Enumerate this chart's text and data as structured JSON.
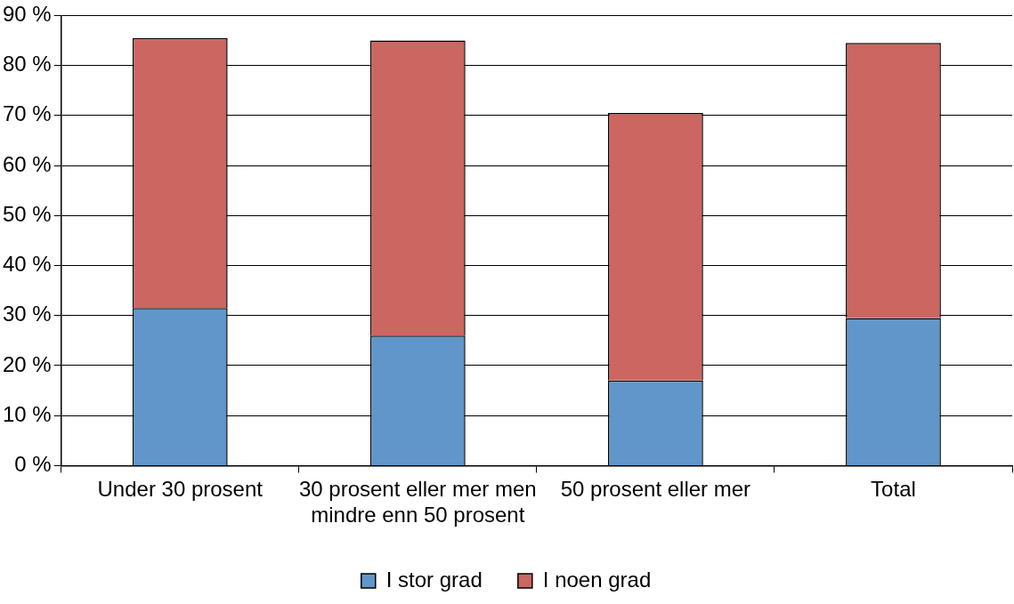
{
  "chart_data": {
    "type": "bar",
    "stacked": true,
    "categories": [
      "Under 30 prosent",
      "30 prosent eller mer men mindre enn 50 prosent",
      "50 prosent eller mer",
      "Total"
    ],
    "series": [
      {
        "name": "I stor grad",
        "color": "#6096c9",
        "values": [
          31.5,
          26,
          17,
          29.5
        ]
      },
      {
        "name": "I noen grad",
        "color": "#cc6660",
        "values": [
          54,
          59,
          53.5,
          55
        ]
      }
    ],
    "ylim": [
      0,
      90
    ],
    "yticks": [
      {
        "value": 0,
        "label": "0 %"
      },
      {
        "value": 10,
        "label": "10 %"
      },
      {
        "value": 20,
        "label": "20 %"
      },
      {
        "value": 30,
        "label": "30 %"
      },
      {
        "value": 40,
        "label": "40 %"
      },
      {
        "value": 50,
        "label": "50 %"
      },
      {
        "value": 60,
        "label": "60 %"
      },
      {
        "value": 70,
        "label": "70 %"
      },
      {
        "value": 80,
        "label": "80 %"
      },
      {
        "value": 90,
        "label": "90 %"
      }
    ],
    "grid": "y",
    "legend": "bottom"
  }
}
